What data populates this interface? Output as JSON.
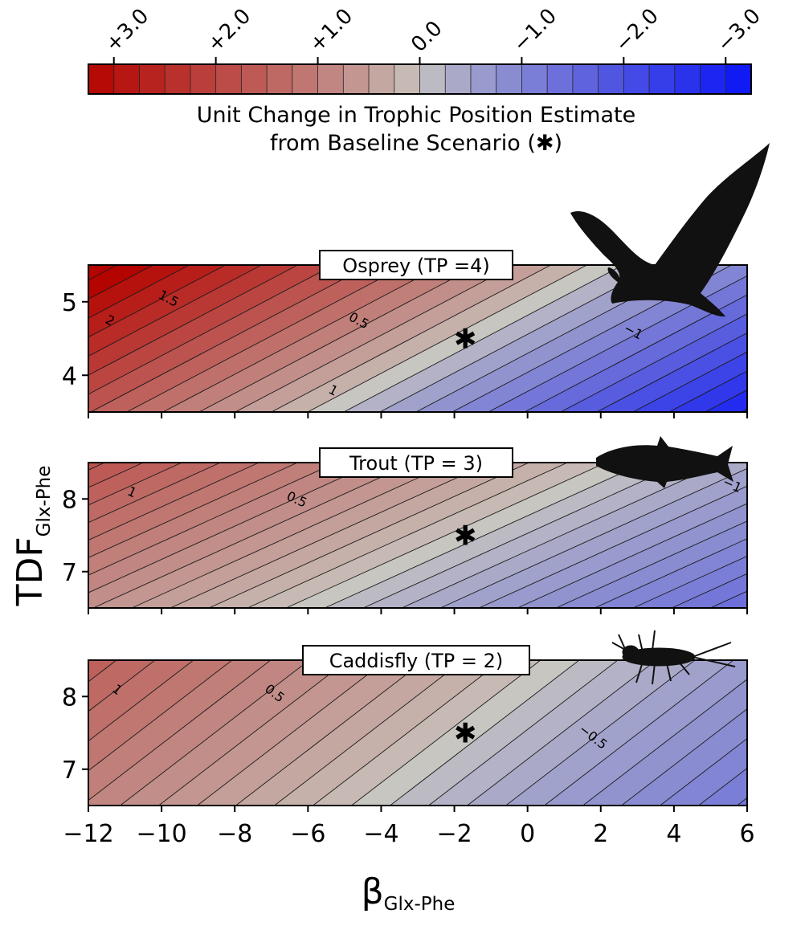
{
  "colorbar": {
    "ticks": [
      "+3.0",
      "+2.0",
      "+1.0",
      "0.0",
      "−1.0",
      "−2.0",
      "−3.0"
    ],
    "tick_values": [
      3.0,
      2.0,
      1.0,
      0.0,
      -1.0,
      -2.0,
      -3.0
    ],
    "range": [
      3.25,
      -3.25
    ],
    "bins": 26,
    "title_line1": "Unit Change in Trophic Position Estimate",
    "title_line2": "from Baseline Scenario (✱)",
    "colors": {
      "positive": "#b40400",
      "neutral": "#c8c6c0",
      "negative": "#0a14f5"
    }
  },
  "axes": {
    "xlabel": "β",
    "xlabel_sub": "Glx-Phe",
    "ylabel": "TDF",
    "ylabel_sub": "Glx-Phe",
    "xlim": [
      -12,
      6
    ],
    "xticks": [
      -12,
      -10,
      -8,
      -6,
      -4,
      -2,
      0,
      2,
      4,
      6
    ],
    "xtick_labels": [
      "−12",
      "−10",
      "−8",
      "−6",
      "−4",
      "−2",
      "0",
      "2",
      "4",
      "6"
    ]
  },
  "chart_data": [
    {
      "type": "contour",
      "title": "Osprey (TP =4)",
      "ylim": [
        3.5,
        5.5
      ],
      "yticks": [
        4,
        5
      ],
      "ytick_labels": [
        "4",
        "5"
      ],
      "baseline": {
        "x": -1.7,
        "y": 4.5,
        "marker": "✱"
      },
      "contour_spacing": 0.25,
      "contour_labels": [
        {
          "text": "2",
          "x": -11.4,
          "y": 4.75
        },
        {
          "text": "1.5",
          "x": -9.8,
          "y": 5.05
        },
        {
          "text": "0.5",
          "x": -4.6,
          "y": 4.75
        },
        {
          "text": "1",
          "x": -5.3,
          "y": 3.8
        },
        {
          "text": "−1",
          "x": 2.9,
          "y": 4.6
        }
      ],
      "silhouette": "osprey"
    },
    {
      "type": "contour",
      "title": "Trout (TP = 3)",
      "ylim": [
        6.5,
        8.5
      ],
      "yticks": [
        7,
        8
      ],
      "ytick_labels": [
        "7",
        "8"
      ],
      "baseline": {
        "x": -1.7,
        "y": 7.5,
        "marker": "✱"
      },
      "contour_spacing": 0.125,
      "contour_labels": [
        {
          "text": "1",
          "x": -10.8,
          "y": 8.1
        },
        {
          "text": "0.5",
          "x": -6.3,
          "y": 8.0
        },
        {
          "text": "−1",
          "x": 5.6,
          "y": 8.2
        }
      ],
      "silhouette": "trout"
    },
    {
      "type": "contour",
      "title": "Caddisfly (TP = 2)",
      "ylim": [
        6.5,
        8.5
      ],
      "yticks": [
        7,
        8
      ],
      "ytick_labels": [
        "7",
        "8"
      ],
      "baseline": {
        "x": -1.7,
        "y": 7.5,
        "marker": "✱"
      },
      "contour_spacing": 0.125,
      "contour_labels": [
        {
          "text": "1",
          "x": -11.2,
          "y": 8.1
        },
        {
          "text": "0.5",
          "x": -6.9,
          "y": 8.05
        },
        {
          "text": "−0.5",
          "x": 1.8,
          "y": 7.45
        }
      ],
      "silhouette": "caddisfly"
    }
  ]
}
